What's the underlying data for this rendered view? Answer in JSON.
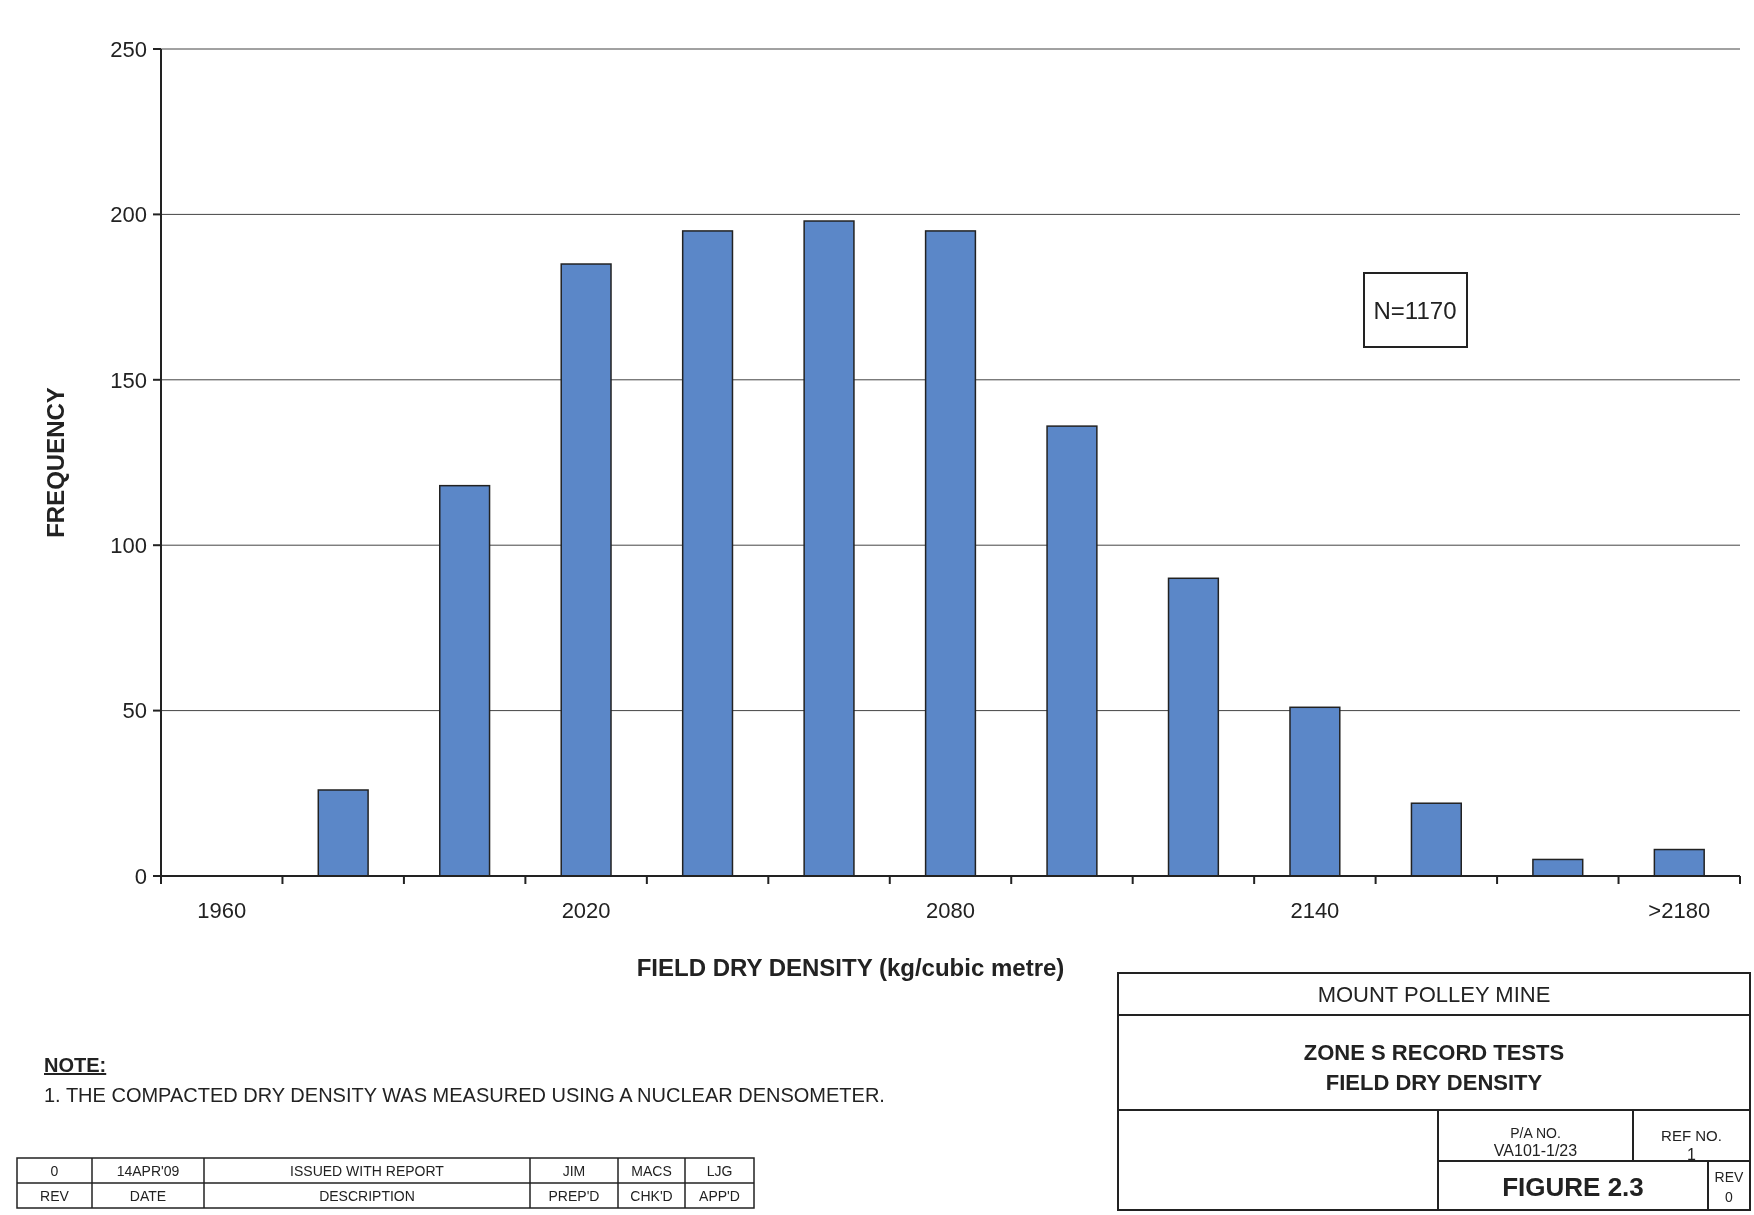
{
  "chart_data": {
    "type": "bar",
    "title": "ZONE S RECORD TESTS",
    "subtitle": "FIELD DRY DENSITY",
    "xlabel": "FIELD DRY DENSITY (kg/cubic metre)",
    "ylabel": "FREQUENCY",
    "categories": [
      "1960",
      null,
      null,
      "2020",
      null,
      null,
      "2080",
      null,
      null,
      "2140",
      null,
      null,
      ">2180"
    ],
    "values": [
      0,
      26,
      118,
      185,
      195,
      198,
      195,
      136,
      90,
      51,
      22,
      5,
      8
    ],
    "color": "#5b87c8",
    "ylim": [
      0,
      250
    ],
    "yticks": [
      0,
      50,
      100,
      150,
      200,
      250
    ],
    "grid": "y",
    "annotations": [
      "N=1170",
      "NOTE:",
      "1. THE COMPACTED DRY DENSITY WAS MEASURED USING A NUCLEAR DENSOMETER.",
      "MOUNT POLLEY MINE",
      "P/A NO.",
      "VA101-1/23",
      "REF NO.",
      "1",
      "FIGURE 2.3",
      "REV",
      "0",
      "0",
      "14APR'09",
      "ISSUED WITH REPORT",
      "JIM",
      "MACS",
      "LJG",
      "REV",
      "DATE",
      "DESCRIPTION",
      "PREP'D",
      "CHK'D",
      "APP'D"
    ]
  }
}
